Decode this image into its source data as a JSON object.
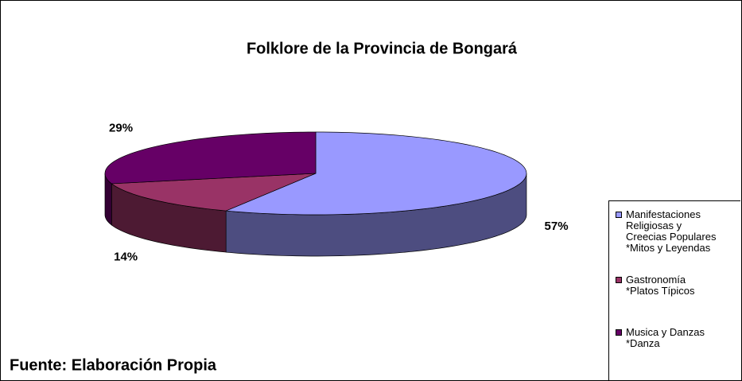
{
  "chart_data": {
    "type": "pie",
    "title": "Folklore de la Provincia de Bongará",
    "categories": [
      "Manifestaciones\nReligiosas y\nCreecias Populares\n*Mitos y Leyendas",
      "Gastronomía\n*Platos Típicos",
      "Musica y Danzas\n*Danza"
    ],
    "values": [
      57,
      14,
      29
    ],
    "value_labels": [
      "57%",
      "14%",
      "29%"
    ],
    "colors": [
      "#9999ff",
      "#993366",
      "#660066"
    ],
    "source": "Fuente: Elaboración Propia"
  }
}
